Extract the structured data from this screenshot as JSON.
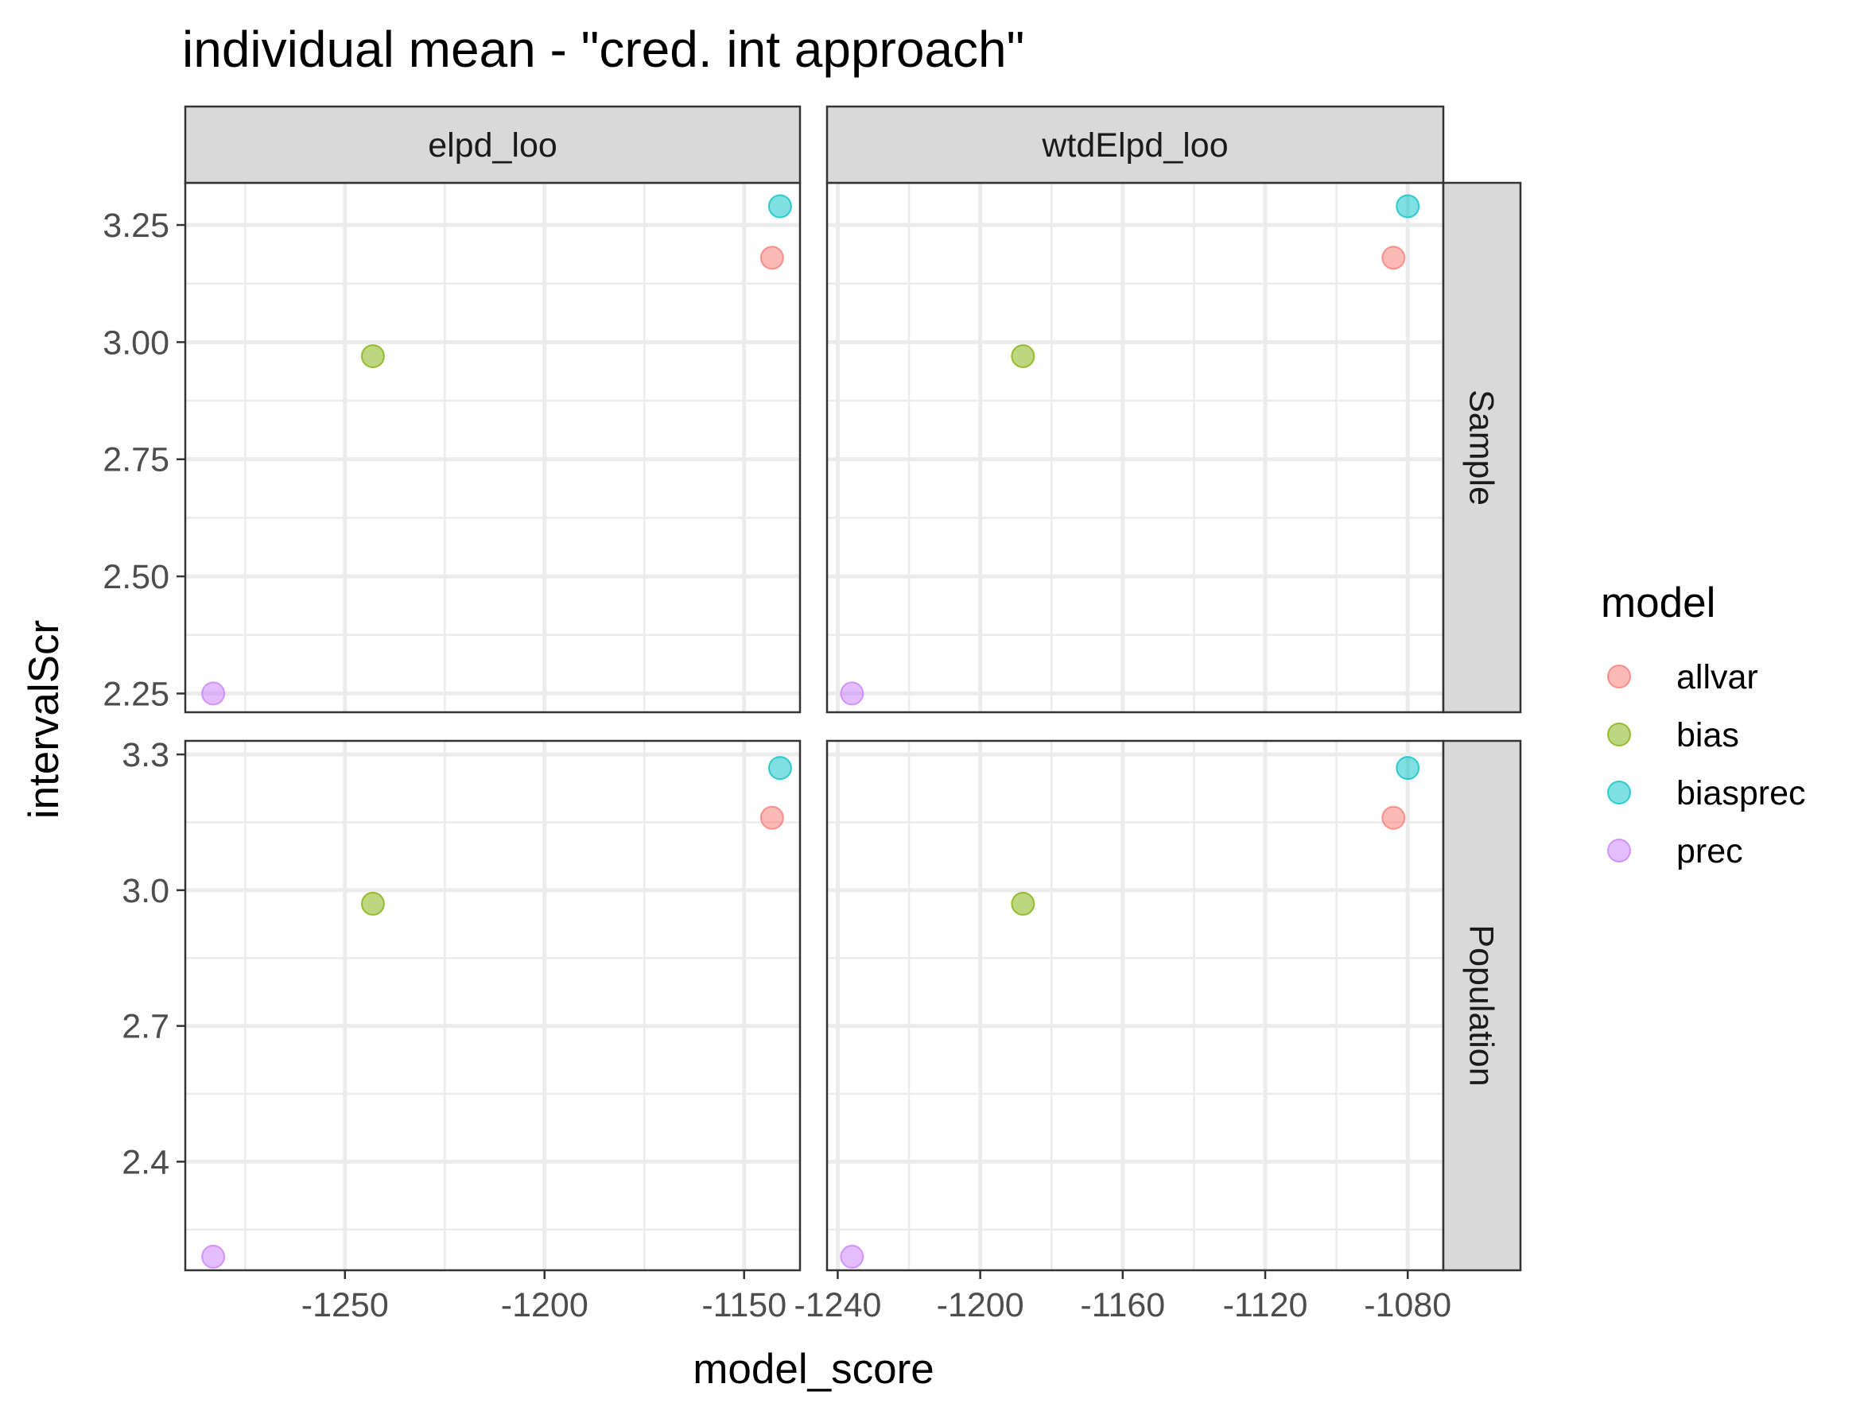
{
  "chart_data": {
    "type": "scatter",
    "title": "individual mean - \"cred. int approach\"",
    "xlabel": "model_score",
    "ylabel": "intervalScr",
    "facet_cols": [
      "elpd_loo",
      "wtdElpd_loo"
    ],
    "facet_rows": [
      "Sample",
      "Population"
    ],
    "legend": {
      "title": "model",
      "position": "right"
    },
    "grid": true,
    "point_alpha": 0.5,
    "series": [
      {
        "name": "allvar",
        "color": "#F8766D"
      },
      {
        "name": "bias",
        "color": "#7CAE00"
      },
      {
        "name": "biasprec",
        "color": "#00BFC4"
      },
      {
        "name": "prec",
        "color": "#C77CFF"
      }
    ],
    "x_scales": [
      {
        "column": "elpd_loo",
        "xlim": [
          -1290,
          -1136
        ],
        "ticks": [
          -1250,
          -1200,
          -1150
        ],
        "tick_labels": [
          "-1250",
          "-1200",
          "-1150"
        ]
      },
      {
        "column": "wtdElpd_loo",
        "xlim": [
          -1243,
          -1070
        ],
        "ticks": [
          -1240,
          -1200,
          -1160,
          -1120,
          -1080
        ],
        "tick_labels": [
          "-1240",
          "-1200",
          "-1160",
          "-1120",
          "-1080"
        ]
      }
    ],
    "y_scales": [
      {
        "row": "Sample",
        "ylim": [
          2.21,
          3.34
        ],
        "ticks": [
          2.25,
          2.5,
          2.75,
          3.0,
          3.25
        ],
        "tick_labels": [
          "2.25",
          "2.50",
          "2.75",
          "3.00",
          "3.25"
        ]
      },
      {
        "row": "Population",
        "ylim": [
          2.16,
          3.33
        ],
        "ticks": [
          2.4,
          2.7,
          3.0,
          3.3
        ],
        "tick_labels": [
          "2.4",
          "2.7",
          "3.0",
          "3.3"
        ]
      }
    ],
    "panels": [
      {
        "column": "elpd_loo",
        "row": "Sample",
        "points": [
          {
            "model": "allvar",
            "x": -1143,
            "y": 3.18
          },
          {
            "model": "bias",
            "x": -1243,
            "y": 2.97
          },
          {
            "model": "biasprec",
            "x": -1141,
            "y": 3.29
          },
          {
            "model": "prec",
            "x": -1283,
            "y": 2.25
          }
        ]
      },
      {
        "column": "wtdElpd_loo",
        "row": "Sample",
        "points": [
          {
            "model": "allvar",
            "x": -1084,
            "y": 3.18
          },
          {
            "model": "bias",
            "x": -1188,
            "y": 2.97
          },
          {
            "model": "biasprec",
            "x": -1080,
            "y": 3.29
          },
          {
            "model": "prec",
            "x": -1236,
            "y": 2.25
          }
        ]
      },
      {
        "column": "elpd_loo",
        "row": "Population",
        "points": [
          {
            "model": "allvar",
            "x": -1143,
            "y": 3.16
          },
          {
            "model": "bias",
            "x": -1243,
            "y": 2.97
          },
          {
            "model": "biasprec",
            "x": -1141,
            "y": 3.27
          },
          {
            "model": "prec",
            "x": -1283,
            "y": 2.19
          }
        ]
      },
      {
        "column": "wtdElpd_loo",
        "row": "Population",
        "points": [
          {
            "model": "allvar",
            "x": -1084,
            "y": 3.16
          },
          {
            "model": "bias",
            "x": -1188,
            "y": 2.97
          },
          {
            "model": "biasprec",
            "x": -1080,
            "y": 3.27
          },
          {
            "model": "prec",
            "x": -1236,
            "y": 2.19
          }
        ]
      }
    ]
  }
}
